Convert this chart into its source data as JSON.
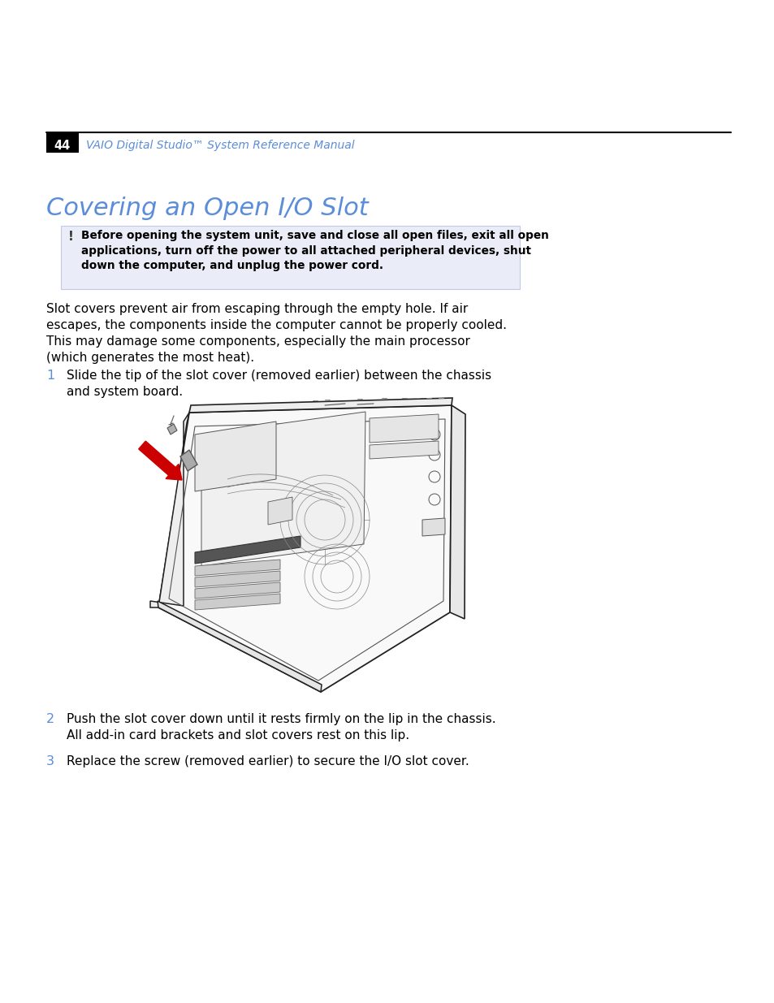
{
  "page_number": "44",
  "header_text": "VAIO Digital Studio™ System Reference Manual",
  "title": "Covering an Open I/O Slot",
  "warning_line1": "Before opening the system unit, save and close all open files, exit all open",
  "warning_line2": "applications, turn off the power to all attached peripheral devices, shut",
  "warning_line3": "down the computer, and unplug the power cord.",
  "body_line1": "Slot covers prevent air from escaping through the empty hole. If air",
  "body_line2": "escapes, the components inside the computer cannot be properly cooled.",
  "body_line3": "This may damage some components, especially the main processor",
  "body_line4": "(which generates the most heat).",
  "step1_num": "1",
  "step1_line1": "Slide the tip of the slot cover (removed earlier) between the chassis",
  "step1_line2": "and system board.",
  "step2_num": "2",
  "step2_line1": "Push the slot cover down until it rests firmly on the lip in the chassis.",
  "step2_line2": "All add-in card brackets and slot covers rest on this lip.",
  "step3_num": "3",
  "step3_line1": "Replace the screw (removed earlier) to secure the I/O slot cover.",
  "title_color": "#5b8dd9",
  "step_num_color": "#5b8dd9",
  "warning_bg": "#eaecf7",
  "warning_border": "#c5c9e8",
  "header_color": "#5b8dd9",
  "page_bg": "#ffffff",
  "black": "#000000",
  "line_dark": "#222222",
  "line_mid": "#555555",
  "line_light": "#888888",
  "gray_fill": "#aaaaaa",
  "red_arrow": "#cc0000"
}
